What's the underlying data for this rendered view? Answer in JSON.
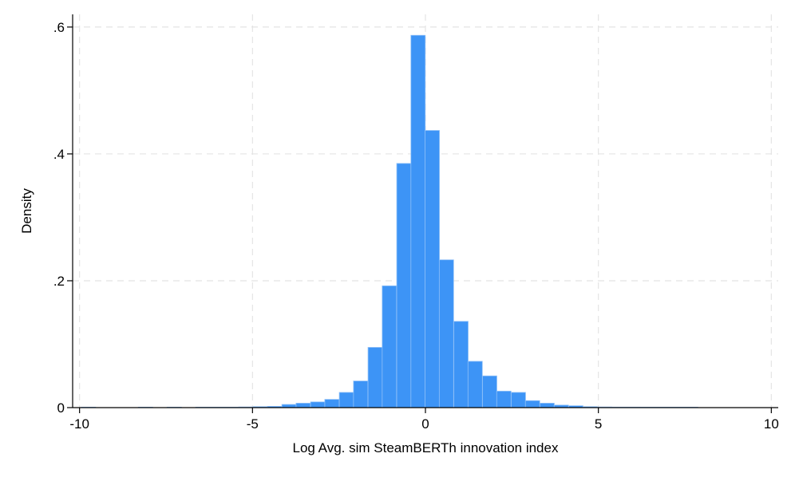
{
  "chart_data": {
    "type": "bar",
    "subtype": "histogram",
    "title": "",
    "xlabel": "Log Avg. sim SteamBERTh innovation index",
    "ylabel": "Density",
    "xlim": [
      -10.2,
      10.2
    ],
    "ylim": [
      0,
      0.62
    ],
    "x_ticks": [
      {
        "value": -10,
        "label": "-10"
      },
      {
        "value": -5,
        "label": "-5"
      },
      {
        "value": 0,
        "label": "0"
      },
      {
        "value": 5,
        "label": "5"
      },
      {
        "value": 10,
        "label": "10"
      }
    ],
    "y_ticks": [
      {
        "value": 0,
        "label": "0"
      },
      {
        "value": 0.2,
        "label": ".2"
      },
      {
        "value": 0.4,
        "label": ".4"
      },
      {
        "value": 0.6,
        "label": ".6"
      }
    ],
    "grid": true,
    "bar_color": "#3d94f6",
    "bar_edge_color": "#8fc0f8",
    "grid_color": "#e4e4e4",
    "bin_width": 0.415,
    "bins": [
      {
        "x0": -9.95,
        "density": 0.0005
      },
      {
        "x0": -8.3,
        "density": 0.0005
      },
      {
        "x0": -7.47,
        "density": 0.0005
      },
      {
        "x0": -6.64,
        "density": 0.0005
      },
      {
        "x0": -6.23,
        "density": 0.0005
      },
      {
        "x0": -5.81,
        "density": 0.0005
      },
      {
        "x0": -5.4,
        "density": 0.001
      },
      {
        "x0": -4.98,
        "density": 0.0015
      },
      {
        "x0": -4.57,
        "density": 0.002
      },
      {
        "x0": -4.15,
        "density": 0.005
      },
      {
        "x0": -3.74,
        "density": 0.007
      },
      {
        "x0": -3.32,
        "density": 0.009
      },
      {
        "x0": -2.91,
        "density": 0.013
      },
      {
        "x0": -2.49,
        "density": 0.024
      },
      {
        "x0": -2.08,
        "density": 0.042
      },
      {
        "x0": -1.66,
        "density": 0.095
      },
      {
        "x0": -1.25,
        "density": 0.192
      },
      {
        "x0": -0.83,
        "density": 0.385
      },
      {
        "x0": -0.42,
        "density": 0.587
      },
      {
        "x0": -0.01,
        "density": 0.437
      },
      {
        "x0": 0.4,
        "density": 0.233
      },
      {
        "x0": 0.82,
        "density": 0.136
      },
      {
        "x0": 1.23,
        "density": 0.073
      },
      {
        "x0": 1.65,
        "density": 0.05
      },
      {
        "x0": 2.06,
        "density": 0.026
      },
      {
        "x0": 2.48,
        "density": 0.024
      },
      {
        "x0": 2.89,
        "density": 0.011
      },
      {
        "x0": 3.31,
        "density": 0.007
      },
      {
        "x0": 3.72,
        "density": 0.004
      },
      {
        "x0": 4.14,
        "density": 0.003
      },
      {
        "x0": 4.55,
        "density": 0.0015
      },
      {
        "x0": 4.97,
        "density": 0.001
      },
      {
        "x0": 5.38,
        "density": 0.0008
      },
      {
        "x0": 5.8,
        "density": 0.0008
      },
      {
        "x0": 6.21,
        "density": 0.0005
      },
      {
        "x0": 6.63,
        "density": 0.0005
      },
      {
        "x0": 7.04,
        "density": 0.0005
      },
      {
        "x0": 7.46,
        "density": 0.0005
      }
    ]
  }
}
